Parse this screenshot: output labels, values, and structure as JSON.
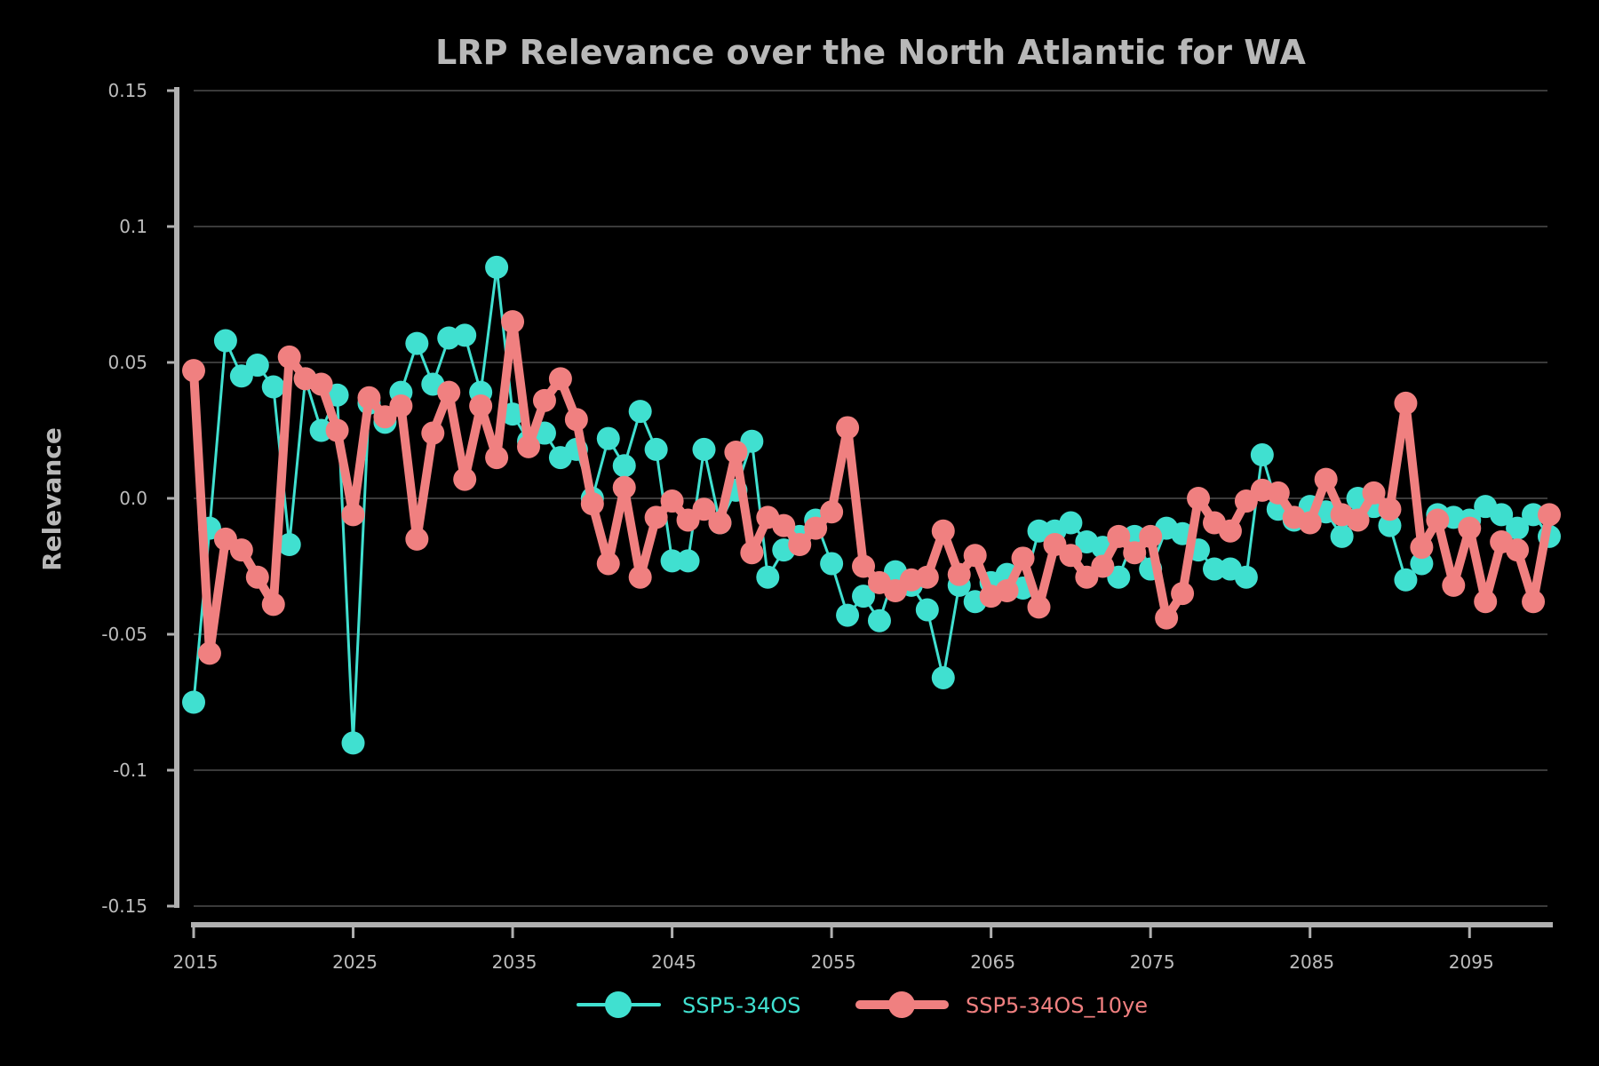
{
  "chart_data": {
    "type": "line",
    "title": "LRP Relevance over the North Atlantic for WA",
    "xlabel": "",
    "ylabel": "Relevance",
    "xlim": [
      2015,
      2100
    ],
    "ylim": [
      -0.15,
      0.15
    ],
    "x_ticks": [
      2015,
      2025,
      2035,
      2045,
      2055,
      2065,
      2075,
      2085,
      2095
    ],
    "x_tick_labels": [
      "2015",
      "2025",
      "2035",
      "2045",
      "2055",
      "2065",
      "2075",
      "2085",
      "2095"
    ],
    "y_ticks": [
      0.15,
      0.1,
      0.05,
      0.0,
      -0.05,
      -0.1,
      -0.15
    ],
    "y_tick_labels": [
      "0.15",
      "0.1",
      "0.05",
      "0.0",
      "-0.05",
      "-0.1",
      "-0.15"
    ],
    "grid": true,
    "legend_position": "bottom-center",
    "x": [
      2015,
      2016,
      2017,
      2018,
      2019,
      2020,
      2021,
      2022,
      2023,
      2024,
      2025,
      2026,
      2027,
      2028,
      2029,
      2030,
      2031,
      2032,
      2033,
      2034,
      2035,
      2036,
      2037,
      2038,
      2039,
      2040,
      2041,
      2042,
      2043,
      2044,
      2045,
      2046,
      2047,
      2048,
      2049,
      2050,
      2051,
      2052,
      2053,
      2054,
      2055,
      2056,
      2057,
      2058,
      2059,
      2060,
      2061,
      2062,
      2063,
      2064,
      2065,
      2066,
      2067,
      2068,
      2069,
      2070,
      2071,
      2072,
      2073,
      2074,
      2075,
      2076,
      2077,
      2078,
      2079,
      2080,
      2081,
      2082,
      2083,
      2084,
      2085,
      2086,
      2087,
      2088,
      2089,
      2090,
      2091,
      2092,
      2093,
      2094,
      2095,
      2096,
      2097,
      2098,
      2099,
      2100
    ],
    "series": [
      {
        "name": "SSP5-34OS",
        "color": "#40e0d0",
        "values": [
          -0.075,
          -0.011,
          0.058,
          0.045,
          0.049,
          0.041,
          -0.017,
          0.044,
          0.025,
          0.038,
          -0.09,
          0.035,
          0.028,
          0.039,
          0.057,
          0.042,
          0.059,
          0.06,
          0.039,
          0.085,
          0.031,
          0.021,
          0.024,
          0.015,
          0.018,
          0.0,
          0.022,
          0.012,
          0.032,
          0.018,
          -0.023,
          -0.023,
          0.018,
          -0.009,
          0.003,
          0.021,
          -0.029,
          -0.019,
          -0.014,
          -0.008,
          -0.024,
          -0.043,
          -0.036,
          -0.045,
          -0.027,
          -0.032,
          -0.041,
          -0.066,
          -0.032,
          -0.038,
          -0.031,
          -0.028,
          -0.033,
          -0.012,
          -0.012,
          -0.009,
          -0.016,
          -0.018,
          -0.029,
          -0.014,
          -0.026,
          -0.011,
          -0.013,
          -0.019,
          -0.026,
          -0.026,
          -0.029,
          0.016,
          -0.004,
          -0.008,
          -0.003,
          -0.005,
          -0.014,
          0.0,
          -0.003,
          -0.01,
          -0.03,
          -0.024,
          -0.006,
          -0.007,
          -0.008,
          -0.003,
          -0.006,
          -0.011,
          -0.006,
          -0.014
        ]
      },
      {
        "name": "SSP5-34OS_10ye",
        "color": "#f08080",
        "values": [
          0.047,
          -0.057,
          -0.015,
          -0.019,
          -0.029,
          -0.039,
          0.052,
          0.044,
          0.042,
          0.025,
          -0.006,
          0.037,
          0.03,
          0.034,
          -0.015,
          0.024,
          0.039,
          0.007,
          0.034,
          0.015,
          0.065,
          0.019,
          0.036,
          0.044,
          0.029,
          -0.002,
          -0.024,
          0.004,
          -0.029,
          -0.007,
          -0.001,
          -0.008,
          -0.004,
          -0.009,
          0.017,
          -0.02,
          -0.007,
          -0.01,
          -0.017,
          -0.011,
          -0.005,
          0.026,
          -0.025,
          -0.031,
          -0.034,
          -0.03,
          -0.029,
          -0.012,
          -0.028,
          -0.021,
          -0.036,
          -0.034,
          -0.022,
          -0.04,
          -0.017,
          -0.021,
          -0.029,
          -0.025,
          -0.014,
          -0.02,
          -0.014,
          -0.044,
          -0.035,
          0.0,
          -0.009,
          -0.012,
          -0.001,
          0.003,
          0.002,
          -0.007,
          -0.009,
          0.007,
          -0.006,
          -0.008,
          0.002,
          -0.004,
          0.035,
          -0.018,
          -0.008,
          -0.032,
          -0.011,
          -0.038,
          -0.016,
          -0.019,
          -0.038,
          -0.006
        ]
      }
    ]
  }
}
